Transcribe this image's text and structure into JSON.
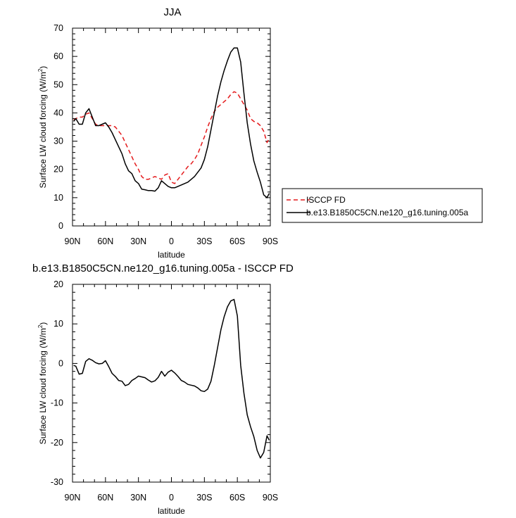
{
  "chart_data": [
    {
      "type": "line",
      "title": "JJA",
      "xlabel": "latitude",
      "ylabel_main": "Surface LW cloud forcing (W/m",
      "ylabel_sup": "2",
      "ylabel_end": ")",
      "xlim": [
        90,
        -90
      ],
      "ylim": [
        0,
        70
      ],
      "xticks": [
        90,
        60,
        30,
        0,
        -30,
        -60,
        -90
      ],
      "xticklabels": [
        "90N",
        "60N",
        "30N",
        "0",
        "30S",
        "60S",
        "90S"
      ],
      "yticks": [
        0,
        10,
        20,
        30,
        40,
        50,
        60,
        70
      ],
      "yticklabels": [
        "0",
        "10",
        "20",
        "30",
        "40",
        "50",
        "60",
        "70"
      ],
      "grid": false,
      "legend_position": "right",
      "series": [
        {
          "name": "ISCCP FD",
          "color": "#e41a1c",
          "dash": "dashed",
          "x": [
            89,
            87,
            84,
            81,
            78,
            75,
            72,
            69,
            66,
            63,
            60,
            57,
            54,
            51,
            48,
            45,
            42,
            39,
            36,
            33,
            30,
            27,
            24,
            21,
            18,
            15,
            12,
            9,
            6,
            3,
            0,
            -3,
            -6,
            -9,
            -12,
            -15,
            -18,
            -21,
            -24,
            -27,
            -30,
            -33,
            -36,
            -39,
            -42,
            -45,
            -48,
            -51,
            -54,
            -57,
            -60,
            -63,
            -66,
            -69,
            -72,
            -75,
            -78,
            -81,
            -84,
            -87,
            -89
          ],
          "values": [
            37.5,
            38,
            38.5,
            38.5,
            39.5,
            40,
            38,
            36,
            35.5,
            35.5,
            35.5,
            35.5,
            35.5,
            35,
            33.5,
            32,
            29.5,
            27,
            24.5,
            22,
            20,
            17.5,
            16.5,
            16.5,
            17,
            17.5,
            17,
            16.5,
            18,
            18.5,
            15.5,
            15,
            16.5,
            18,
            19.5,
            21,
            22,
            23.5,
            25.5,
            28.5,
            31.5,
            35,
            38,
            40.5,
            42,
            43,
            44,
            45,
            46.5,
            47.5,
            47,
            45,
            43,
            41,
            38,
            37,
            36.5,
            35.5,
            33.5,
            29.5,
            31
          ]
        },
        {
          "name": "b.e13.B1850C5CN.ne120_g16.tuning.005a",
          "color": "#000000",
          "dash": "solid",
          "x": [
            89,
            87,
            84,
            81,
            78,
            75,
            72,
            69,
            66,
            63,
            60,
            57,
            54,
            51,
            48,
            45,
            42,
            39,
            36,
            33,
            30,
            27,
            24,
            21,
            18,
            15,
            12,
            9,
            6,
            3,
            0,
            -3,
            -6,
            -9,
            -12,
            -15,
            -18,
            -21,
            -24,
            -27,
            -30,
            -33,
            -36,
            -39,
            -42,
            -45,
            -48,
            -51,
            -54,
            -57,
            -60,
            -63,
            -66,
            -69,
            -72,
            -75,
            -78,
            -81,
            -84,
            -87,
            -89
          ],
          "values": [
            37,
            38,
            36,
            36,
            40,
            41.5,
            38.5,
            35.5,
            35.5,
            36,
            36.5,
            35,
            33,
            30.5,
            28,
            25.5,
            22,
            19.5,
            18.5,
            16,
            15,
            13,
            12.8,
            12.5,
            12.5,
            12.3,
            13.5,
            16,
            15,
            14,
            13.5,
            13.5,
            14,
            14.5,
            15,
            15.5,
            16.5,
            17.5,
            19,
            20.5,
            23.5,
            28,
            34,
            40,
            46,
            51,
            55,
            58.5,
            61.5,
            63,
            63,
            58,
            47,
            36.5,
            29,
            23,
            19,
            15.5,
            11,
            10,
            11.5
          ]
        }
      ]
    },
    {
      "type": "line",
      "title": "b.e13.B1850C5CN.ne120_g16.tuning.005a - ISCCP FD",
      "xlabel": "latitude",
      "ylabel_main": "Surface LW cloud forcing (W/m",
      "ylabel_sup": "2",
      "ylabel_end": ")",
      "xlim": [
        90,
        -90
      ],
      "ylim": [
        -30,
        20
      ],
      "xticks": [
        90,
        60,
        30,
        0,
        -30,
        -60,
        -90
      ],
      "xticklabels": [
        "90N",
        "60N",
        "30N",
        "0",
        "30S",
        "60S",
        "90S"
      ],
      "yticks": [
        -30,
        -20,
        -10,
        0,
        10,
        20
      ],
      "yticklabels": [
        "-30",
        "-20",
        "-10",
        "0",
        "10",
        "20"
      ],
      "grid": false,
      "series": [
        {
          "color": "#000000",
          "dash": "solid",
          "x": [
            89,
            87,
            84,
            81,
            78,
            75,
            72,
            69,
            66,
            63,
            60,
            57,
            54,
            51,
            48,
            45,
            42,
            39,
            36,
            33,
            30,
            27,
            24,
            21,
            18,
            15,
            12,
            9,
            6,
            3,
            0,
            -3,
            -6,
            -9,
            -12,
            -15,
            -18,
            -21,
            -24,
            -27,
            -30,
            -33,
            -36,
            -39,
            -42,
            -45,
            -48,
            -51,
            -54,
            -57,
            -60,
            -63,
            -66,
            -69,
            -72,
            -75,
            -78,
            -81,
            -84,
            -87,
            -89
          ],
          "values": [
            -0.5,
            -0.7,
            -2.7,
            -2.5,
            0.5,
            1.2,
            0.8,
            0.2,
            -0.1,
            0,
            0.7,
            -0.8,
            -2.5,
            -3.3,
            -4.3,
            -4.5,
            -5.6,
            -5.3,
            -4.3,
            -3.8,
            -3.2,
            -3.4,
            -3.6,
            -4.2,
            -4.7,
            -4.4,
            -3.5,
            -2,
            -3.2,
            -2.2,
            -1.7,
            -2.4,
            -3.3,
            -4.3,
            -4.7,
            -5.3,
            -5.5,
            -5.7,
            -6.2,
            -6.9,
            -7.1,
            -6.5,
            -4.5,
            -0.5,
            4,
            8.5,
            11.8,
            14.3,
            15.8,
            16.2,
            12,
            -0.5,
            -7.5,
            -13,
            -16,
            -18.5,
            -22,
            -23.9,
            -22.5,
            -18.3,
            -19.4
          ]
        }
      ]
    }
  ]
}
